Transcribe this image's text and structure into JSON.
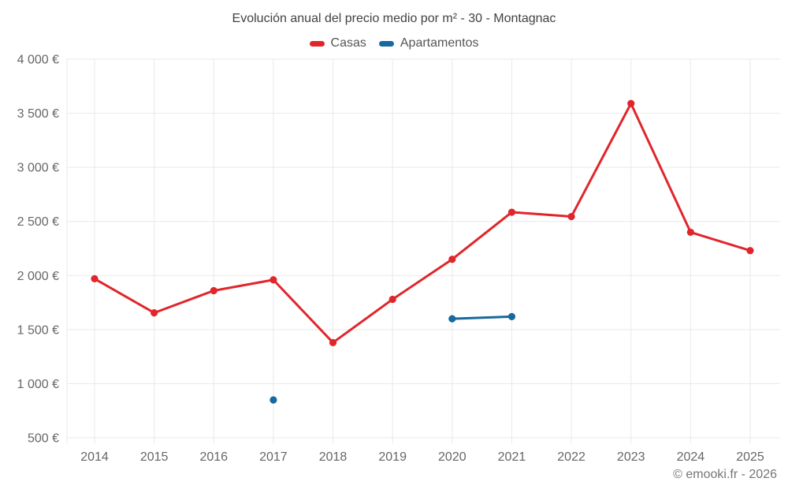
{
  "title": "Evolución anual del precio medio por m² - 30 - Montagnac",
  "footer": "© emooki.fr - 2026",
  "legend": [
    {
      "label": "Casas",
      "color": "#e0262b"
    },
    {
      "label": "Apartamentos",
      "color": "#17699e"
    }
  ],
  "colors": {
    "grid": "#e9e9e9",
    "axis_text": "#666666",
    "casas": "#e0262b",
    "apartamentos": "#17699e"
  },
  "chart_data": {
    "type": "line",
    "title": "Evolución anual del precio medio por m² - 30 - Montagnac",
    "xlabel": "",
    "ylabel": "",
    "x": [
      2014,
      2015,
      2016,
      2017,
      2018,
      2019,
      2020,
      2021,
      2022,
      2023,
      2024,
      2025
    ],
    "x_tick_labels": [
      "2014",
      "2015",
      "2016",
      "2017",
      "2018",
      "2019",
      "2020",
      "2021",
      "2022",
      "2023",
      "2024",
      "2025"
    ],
    "series": [
      {
        "name": "Casas",
        "color": "#e0262b",
        "values": [
          1970,
          1655,
          1860,
          1960,
          1380,
          1780,
          2150,
          2585,
          2545,
          3590,
          2400,
          2230
        ]
      },
      {
        "name": "Apartamentos",
        "color": "#17699e",
        "values": [
          null,
          null,
          null,
          850,
          null,
          null,
          1600,
          1620,
          null,
          null,
          null,
          null
        ]
      }
    ],
    "ylim": [
      500,
      4000
    ],
    "y_ticks": [
      500,
      1000,
      1500,
      2000,
      2500,
      3000,
      3500,
      4000
    ],
    "y_tick_labels": [
      "500 €",
      "1 000 €",
      "1 500 €",
      "2 000 €",
      "2 500 €",
      "3 000 €",
      "3 500 €",
      "4 000 €"
    ],
    "grid": true,
    "legend_position": "top",
    "unit": "€/m²"
  }
}
